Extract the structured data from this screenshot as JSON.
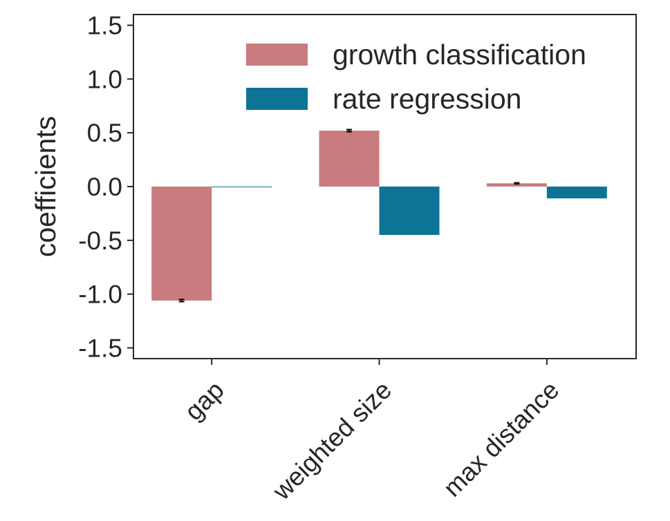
{
  "chart_data": {
    "type": "bar",
    "title": "",
    "xlabel": "",
    "ylabel": "coefficients",
    "ylim": [
      -1.6,
      1.6
    ],
    "yticks": [
      1.5,
      1.0,
      0.5,
      0.0,
      -0.5,
      -1.0,
      -1.5
    ],
    "ytick_labels": [
      "1.5",
      "1.0",
      "0.5",
      "0.0",
      "-0.5",
      "-1.0",
      "-1.5"
    ],
    "categories": [
      "gap",
      "weighted size",
      "max distance"
    ],
    "grid": false,
    "legend_position": "top-right",
    "series": [
      {
        "name": "growth classification",
        "color": "#c97b7f",
        "values": [
          -1.06,
          0.52,
          0.03
        ],
        "error": [
          0.01,
          0.01,
          0.005
        ]
      },
      {
        "name": "rate regression",
        "color": "#0e7496",
        "values": [
          0.0,
          -0.45,
          -0.11
        ],
        "error": [
          0,
          0,
          0
        ]
      }
    ]
  }
}
